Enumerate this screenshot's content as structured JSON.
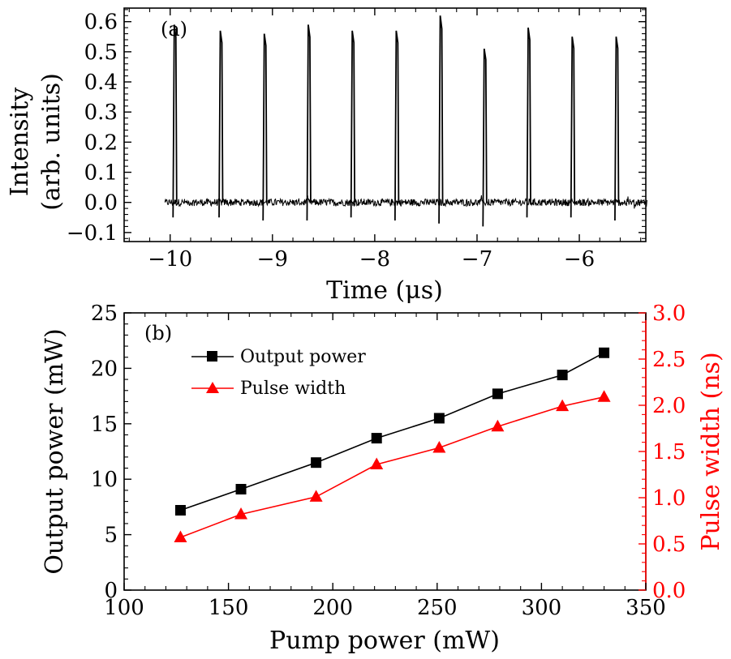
{
  "chart_data": [
    {
      "type": "line",
      "panel_label": "(a)",
      "title": "",
      "xlabel": "Time (μs)",
      "ylabel_line1": "Intensity",
      "ylabel_line2": "(arb. units)",
      "xlim": [
        -10.45,
        -5.35
      ],
      "ylim": [
        -0.13,
        0.645
      ],
      "x_ticks": [
        -10,
        -9,
        -8,
        -7,
        -6
      ],
      "x_tick_labels": [
        "−10",
        "−9",
        "−8",
        "−7",
        "−6"
      ],
      "y_ticks": [
        -0.1,
        0.0,
        0.1,
        0.2,
        0.3,
        0.4,
        0.5,
        0.6
      ],
      "y_tick_labels": [
        "−0.1",
        "0.0",
        "0.1",
        "0.2",
        "0.3",
        "0.4",
        "0.5",
        "0.6"
      ],
      "signal_x_range": [
        -10.05,
        -5.33
      ],
      "baseline_noise": 0.012,
      "series": [
        {
          "pulse_times": [
            -9.96,
            -9.51,
            -9.08,
            -8.65,
            -8.22,
            -7.79,
            -7.36,
            -6.93,
            -6.5,
            -6.07,
            -5.64
          ],
          "pulse_peaks": [
            0.59,
            0.57,
            0.56,
            0.59,
            0.57,
            0.57,
            0.62,
            0.51,
            0.58,
            0.55,
            0.55
          ],
          "pulse_dips": [
            -0.05,
            -0.05,
            -0.06,
            -0.06,
            -0.05,
            -0.06,
            -0.07,
            -0.08,
            -0.05,
            -0.05,
            -0.06
          ]
        }
      ]
    },
    {
      "type": "line",
      "panel_label": "(b)",
      "title": "",
      "xlabel": "Pump power (mW)",
      "ylabel_left": "Output power (mW)",
      "ylabel_right": "Pulse width (ns)",
      "xlim": [
        100,
        350
      ],
      "ylim_left": [
        0,
        25
      ],
      "ylim_right": [
        0,
        3.0
      ],
      "x_ticks": [
        100,
        150,
        200,
        250,
        300,
        350
      ],
      "y_ticks_left": [
        0,
        5,
        10,
        15,
        20,
        25
      ],
      "y_ticks_right": [
        0.0,
        0.5,
        1.0,
        1.5,
        2.0,
        2.5,
        3.0
      ],
      "y_tick_labels_right": [
        "0.0",
        "0.5",
        "1.0",
        "1.5",
        "2.0",
        "2.5",
        "3.0"
      ],
      "legend_position": "top-left",
      "x": [
        127,
        156,
        192,
        221,
        251,
        279,
        310,
        330
      ],
      "series": [
        {
          "name": "Output power",
          "axis": "left",
          "color": "#000000",
          "marker": "square",
          "values": [
            7.2,
            9.1,
            11.5,
            13.7,
            15.5,
            17.7,
            19.4,
            21.4
          ]
        },
        {
          "name": "Pulse width",
          "axis": "right",
          "color": "#ff0000",
          "marker": "triangle",
          "values": [
            0.57,
            0.82,
            1.01,
            1.36,
            1.54,
            1.77,
            1.99,
            2.09
          ]
        }
      ]
    }
  ]
}
